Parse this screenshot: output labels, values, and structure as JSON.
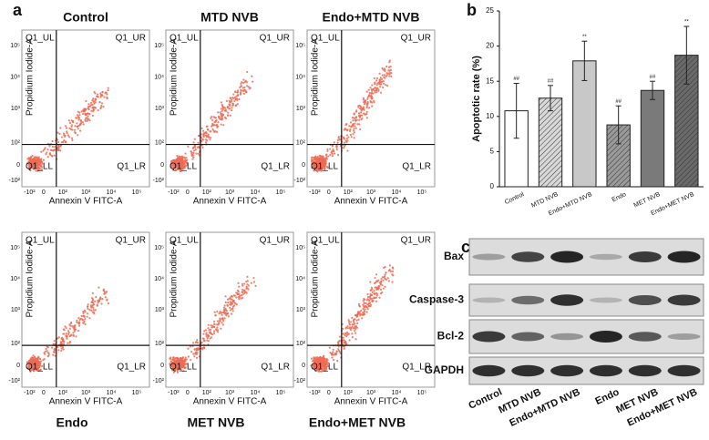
{
  "panel_labels": [
    "a",
    "b",
    "c"
  ],
  "flow": {
    "x_label": "Annexin V FITC-A",
    "y_label": "Propidium Iodide-A",
    "quadrants": [
      "Q1_UL",
      "Q1_UR",
      "Q1_LL",
      "Q1_LR"
    ],
    "x_tick_labels": [
      "-10²",
      "0",
      "10²",
      "10³",
      "10⁴",
      "10⁵"
    ],
    "y_tick_labels": [
      "-10²",
      "0",
      "10²",
      "10³",
      "10⁴",
      "10⁵"
    ],
    "plots": [
      {
        "title": "Control"
      },
      {
        "title": "MTD NVB"
      },
      {
        "title": "Endo+MTD NVB"
      },
      {
        "title": "Endo"
      },
      {
        "title": "MET NVB"
      },
      {
        "title": "Endo+MET NVB"
      }
    ]
  },
  "chart_data": {
    "type": "bar",
    "y_label": "Apoptotic rate (%)",
    "categories": [
      "Control",
      "MTD NVB",
      "Endo+MTD NVB",
      "Endo",
      "MET NVB",
      "Endo+MET NVB"
    ],
    "values": [
      10.8,
      12.6,
      17.9,
      8.8,
      13.7,
      18.7
    ],
    "errors": [
      3.9,
      1.8,
      2.8,
      2.7,
      1.3,
      4.1
    ],
    "significance": [
      "##",
      "##",
      "**",
      "##",
      "##",
      "**"
    ],
    "colors": [
      "#ffffff",
      "#d8d8d8",
      "#c8c8c8",
      "#9a9a9a",
      "#7a7a7a",
      "#6a6a6a"
    ],
    "hatched": [
      false,
      true,
      false,
      true,
      false,
      true
    ],
    "ylim": [
      0,
      25
    ],
    "yticks": [
      0,
      5,
      10,
      15,
      20,
      25
    ]
  },
  "blot": {
    "proteins": [
      "Bax",
      "Caspase-3",
      "Bcl-2",
      "GAPDH"
    ],
    "lanes": [
      "Control",
      "MTD NVB",
      "Endo+MTD NVB",
      "Endo",
      "MET NVB",
      "Endo+MET NVB"
    ],
    "intensity": [
      [
        0.3,
        0.75,
        0.9,
        0.25,
        0.8,
        0.9
      ],
      [
        0.2,
        0.55,
        0.85,
        0.2,
        0.7,
        0.8
      ],
      [
        0.8,
        0.6,
        0.35,
        0.9,
        0.65,
        0.3
      ],
      [
        0.85,
        0.85,
        0.85,
        0.85,
        0.85,
        0.85
      ]
    ]
  }
}
